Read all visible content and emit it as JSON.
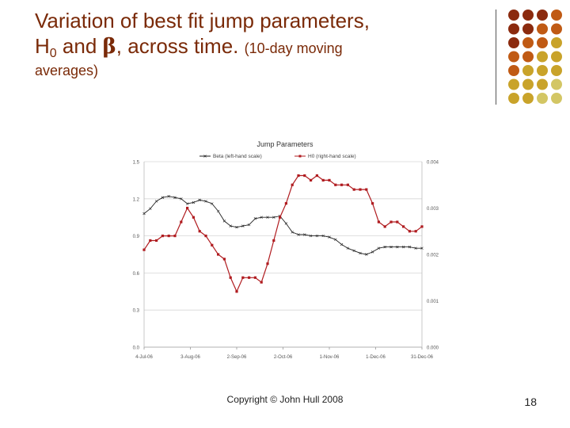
{
  "slide": {
    "title_line1": "Variation of best fit jump parameters,",
    "title_h": "H",
    "title_sub": "0",
    "title_and": " and ",
    "title_beta": "β",
    "title_across": ", across time.",
    "title_note": "(10-day moving",
    "title_line3": "averages)",
    "copyright": "Copyright © John Hull 2008",
    "page_number": "18"
  },
  "theme": {
    "title_color": "#7a2a08",
    "dot_colors": [
      "#8b2a0e",
      "#c05a14",
      "#c9a32a",
      "#d3c664"
    ],
    "beta_color": "#222222",
    "h0_color": "#b01c20"
  },
  "chart_data": {
    "type": "line",
    "title": "Jump Parameters",
    "legend": [
      "Beta (left-hand scale)",
      "H0 (right-hand scale)"
    ],
    "legend_position": "top",
    "x_tick_labels": [
      "4-Jul-06",
      "3-Aug-06",
      "2-Sep-06",
      "2-Oct-06",
      "1-Nov-06",
      "1-Dec-06",
      "31-Dec-06"
    ],
    "x_range": [
      0,
      180
    ],
    "y_left_ticks": [
      "0.0",
      "0.3",
      "0.6",
      "0.9",
      "1.2",
      "1.5"
    ],
    "y_left_range": [
      0,
      1.5
    ],
    "y_right_ticks": [
      "0.000",
      "0.001",
      "0.002",
      "0.003",
      "0.004"
    ],
    "y_right_range": [
      0,
      0.004
    ],
    "grid": "horizontal",
    "series": [
      {
        "name": "Beta (left-hand scale)",
        "axis": "left",
        "x": [
          0,
          4,
          8,
          12,
          16,
          20,
          24,
          28,
          32,
          36,
          40,
          44,
          48,
          52,
          56,
          60,
          64,
          68,
          72,
          76,
          80,
          84,
          88,
          92,
          96,
          100,
          104,
          108,
          112,
          116,
          120,
          124,
          128,
          132,
          136,
          140,
          144,
          148,
          152,
          156,
          160,
          164,
          168,
          172,
          176,
          180
        ],
        "y": [
          1.08,
          1.12,
          1.18,
          1.21,
          1.22,
          1.21,
          1.2,
          1.16,
          1.17,
          1.19,
          1.18,
          1.16,
          1.1,
          1.02,
          0.98,
          0.97,
          0.98,
          0.99,
          1.04,
          1.05,
          1.05,
          1.05,
          1.06,
          1.0,
          0.93,
          0.91,
          0.91,
          0.9,
          0.9,
          0.9,
          0.89,
          0.87,
          0.83,
          0.8,
          0.78,
          0.76,
          0.75,
          0.77,
          0.8,
          0.81,
          0.81,
          0.81,
          0.81,
          0.81,
          0.8,
          0.8
        ]
      },
      {
        "name": "H0 (right-hand scale)",
        "axis": "right",
        "x": [
          0,
          4,
          8,
          12,
          16,
          20,
          24,
          28,
          32,
          36,
          40,
          44,
          48,
          52,
          56,
          60,
          64,
          68,
          72,
          76,
          80,
          84,
          88,
          92,
          96,
          100,
          104,
          108,
          112,
          116,
          120,
          124,
          128,
          132,
          136,
          140,
          144,
          148,
          152,
          156,
          160,
          164,
          168,
          172,
          176,
          180
        ],
        "y": [
          0.0021,
          0.0023,
          0.0023,
          0.0024,
          0.0024,
          0.0024,
          0.0027,
          0.003,
          0.0028,
          0.0025,
          0.0024,
          0.0022,
          0.002,
          0.0019,
          0.0015,
          0.0012,
          0.0015,
          0.0015,
          0.0015,
          0.0014,
          0.0018,
          0.0023,
          0.0028,
          0.0031,
          0.0035,
          0.0037,
          0.0037,
          0.0036,
          0.0037,
          0.0036,
          0.0036,
          0.0035,
          0.0035,
          0.0035,
          0.0034,
          0.0034,
          0.0034,
          0.0031,
          0.0027,
          0.0026,
          0.0027,
          0.0027,
          0.0026,
          0.0025,
          0.0025,
          0.0026
        ]
      }
    ]
  }
}
